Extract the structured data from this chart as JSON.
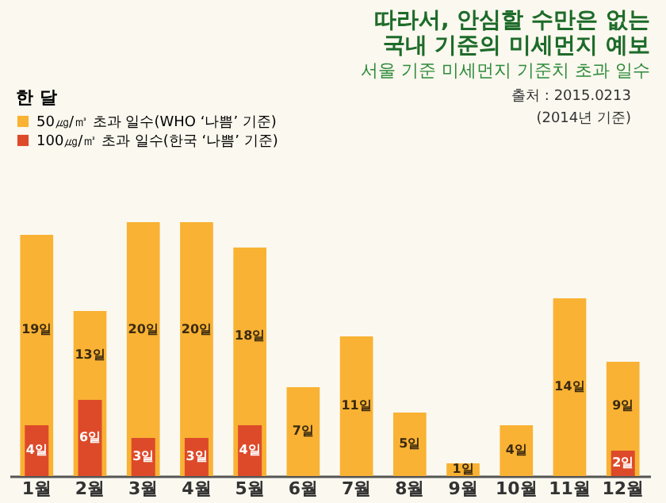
{
  "chart_data": {
    "type": "bar",
    "title": "따라서, 안심할 수만은 없는\n국내 기준의 미세먼지 예보",
    "subtitle": "서울 기준 미세먼지 기준치 초과 일수",
    "legend_title": "한 달",
    "annotations": [
      "출처 : 2015.0213",
      "(2014년 기준)"
    ],
    "categories": [
      "1월",
      "2월",
      "3월",
      "4월",
      "5월",
      "6월",
      "7월",
      "8월",
      "9월",
      "10월",
      "11월",
      "12월"
    ],
    "series": [
      {
        "name": "50㎍/㎥ 초과 일수(WHO ‘나쁨’ 기준)",
        "color": "#f9b233",
        "values": [
          19,
          13,
          20,
          20,
          18,
          7,
          11,
          5,
          1,
          4,
          14,
          9
        ],
        "value_labels": [
          "19일",
          "13일",
          "20일",
          "20일",
          "18일",
          "7일",
          "11일",
          "5일",
          "1일",
          "4일",
          "14일",
          "9일"
        ]
      },
      {
        "name": "100㎍/㎥ 초과 일수(한국 ‘나쁨’ 기준)",
        "color": "#dd4a2a",
        "values": [
          4,
          6,
          3,
          3,
          4,
          null,
          null,
          null,
          null,
          null,
          null,
          2
        ],
        "value_labels": [
          "4일",
          "6일",
          "3일",
          "3일",
          "4일",
          null,
          null,
          null,
          null,
          null,
          null,
          "2일"
        ]
      }
    ],
    "legend": "top left",
    "tick_labels": "x"
  }
}
